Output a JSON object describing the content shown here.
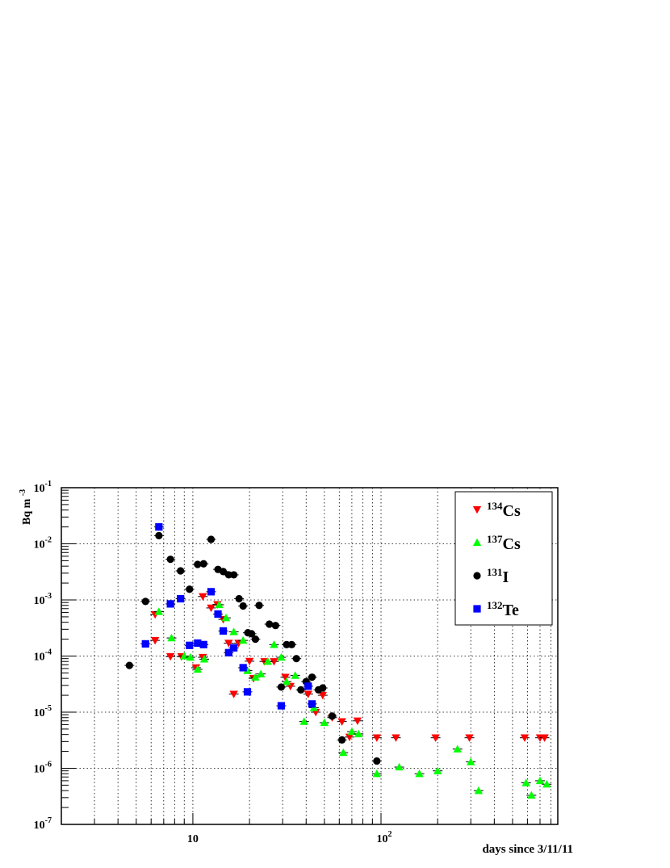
{
  "chart_data": {
    "type": "scatter",
    "title": "",
    "xlabel": "days since 3/11/11",
    "ylabel": "Bq m",
    "ylabel_exp": "-3",
    "x_scale": "log",
    "y_scale": "log",
    "xlim": [
      2,
      870
    ],
    "ylim": [
      1e-07,
      0.1
    ],
    "grid": true,
    "legend_position": "top-right",
    "x_ticks": [
      {
        "value": 10,
        "base": "10",
        "exp": ""
      },
      {
        "value": 100,
        "base": "10",
        "exp": "2"
      }
    ],
    "y_ticks": [
      {
        "value": 1e-07,
        "base": "10",
        "exp": "-7"
      },
      {
        "value": 1e-06,
        "base": "10",
        "exp": "-6"
      },
      {
        "value": 1e-05,
        "base": "10",
        "exp": "-5"
      },
      {
        "value": 0.0001,
        "base": "10",
        "exp": "-4"
      },
      {
        "value": 0.001,
        "base": "10",
        "exp": "-3"
      },
      {
        "value": 0.01,
        "base": "10",
        "exp": "-2"
      },
      {
        "value": 0.1,
        "base": "10",
        "exp": "-1"
      }
    ],
    "series": [
      {
        "name": "Cs",
        "sup": "134",
        "marker": "triangle-down",
        "color": "#ff0000",
        "points": [
          [
            6.3,
            0.00055
          ],
          [
            6.3,
            0.00019
          ],
          [
            7.6,
            9.8e-05
          ],
          [
            8.7,
            9.8e-05
          ],
          [
            10.4,
            6.2e-05
          ],
          [
            11.3,
            0.00115
          ],
          [
            11.3,
            9.5e-05
          ],
          [
            12.5,
            0.00072
          ],
          [
            13.5,
            0.00083
          ],
          [
            14.5,
            0.00045
          ],
          [
            15.5,
            0.00017
          ],
          [
            16.5,
            2.1e-05
          ],
          [
            17.5,
            0.00017
          ],
          [
            20.0,
            8.1e-05
          ],
          [
            21.0,
            4e-05
          ],
          [
            24.0,
            8e-05
          ],
          [
            27.0,
            8e-05
          ],
          [
            31.0,
            4.2e-05
          ],
          [
            33.0,
            2.9e-05
          ],
          [
            41.0,
            2.1e-05
          ],
          [
            45.0,
            1e-05
          ],
          [
            49.0,
            2e-05
          ],
          [
            55.0,
            8e-06
          ],
          [
            62.0,
            6.8e-06
          ],
          [
            68.0,
            3.6e-06
          ],
          [
            75.0,
            7e-06
          ],
          [
            95.0,
            3.5e-06
          ],
          [
            120.0,
            3.5e-06
          ],
          [
            195.0,
            3.5e-06
          ],
          [
            295.0,
            3.5e-06
          ],
          [
            580.0,
            3.5e-06
          ],
          [
            700.0,
            3.5e-06
          ],
          [
            740.0,
            3.5e-06
          ]
        ]
      },
      {
        "name": "Cs",
        "sup": "137",
        "marker": "triangle-up",
        "color": "#00ff00",
        "points": [
          [
            6.6,
            0.00062
          ],
          [
            7.7,
            0.00021
          ],
          [
            9.0,
            0.0001
          ],
          [
            9.7,
            9.5e-05
          ],
          [
            10.6,
            5.8e-05
          ],
          [
            11.5,
            8.8e-05
          ],
          [
            13.8,
            0.00082
          ],
          [
            15.0,
            0.00048
          ],
          [
            16.5,
            0.00027
          ],
          [
            18.5,
            0.00019
          ],
          [
            19.5,
            5.5e-05
          ],
          [
            21.5,
            4.2e-05
          ],
          [
            23.0,
            4.8e-05
          ],
          [
            25.0,
            8e-05
          ],
          [
            27.0,
            0.00016
          ],
          [
            29.5,
            9.5e-05
          ],
          [
            31.5,
            3.5e-05
          ],
          [
            35.0,
            4.5e-05
          ],
          [
            39.0,
            6.8e-06
          ],
          [
            44.0,
            1.2e-05
          ],
          [
            50.0,
            6.5e-06
          ],
          [
            63.0,
            1.9e-06
          ],
          [
            70.0,
            4.5e-06
          ],
          [
            76.0,
            4.1e-06
          ],
          [
            95.0,
            8e-07
          ],
          [
            125.0,
            1.05e-06
          ],
          [
            160.0,
            8e-07
          ],
          [
            200.0,
            9e-07
          ],
          [
            255.0,
            2.2e-06
          ],
          [
            300.0,
            1.3e-06
          ],
          [
            330.0,
            4e-07
          ],
          [
            590.0,
            5.5e-07
          ],
          [
            630.0,
            3.3e-07
          ],
          [
            700.0,
            6e-07
          ],
          [
            760.0,
            5.2e-07
          ]
        ]
      },
      {
        "name": "I",
        "sup": "131",
        "marker": "circle",
        "color": "#000000",
        "points": [
          [
            4.6,
            6.8e-05
          ],
          [
            5.6,
            0.00094
          ],
          [
            6.6,
            0.014
          ],
          [
            7.6,
            0.0053
          ],
          [
            8.6,
            0.0033
          ],
          [
            9.6,
            0.00155
          ],
          [
            10.6,
            0.0043
          ],
          [
            11.4,
            0.0044
          ],
          [
            12.5,
            0.012
          ],
          [
            13.6,
            0.0035
          ],
          [
            14.5,
            0.0032
          ],
          [
            15.5,
            0.0028
          ],
          [
            16.5,
            0.0028
          ],
          [
            17.6,
            0.00105
          ],
          [
            18.5,
            0.00078
          ],
          [
            19.6,
            0.00026
          ],
          [
            20.5,
            0.00025
          ],
          [
            21.5,
            0.0002
          ],
          [
            22.5,
            0.0008
          ],
          [
            25.5,
            0.00037
          ],
          [
            27.5,
            0.00035
          ],
          [
            29.5,
            2.8e-05
          ],
          [
            31.5,
            0.00016
          ],
          [
            33.5,
            0.00016
          ],
          [
            35.5,
            9e-05
          ],
          [
            37.5,
            2.5e-05
          ],
          [
            40.0,
            3.5e-05
          ],
          [
            43.0,
            4.2e-05
          ],
          [
            46.5,
            2.5e-05
          ],
          [
            49.0,
            2.7e-05
          ],
          [
            55.0,
            8.5e-06
          ],
          [
            62.0,
            3.2e-06
          ],
          [
            95.0,
            1.35e-06
          ]
        ]
      },
      {
        "name": "Te",
        "sup": "132",
        "marker": "square",
        "color": "#0000ff",
        "points": [
          [
            5.6,
            0.000165
          ],
          [
            6.6,
            0.02
          ],
          [
            7.6,
            0.00085
          ],
          [
            8.6,
            0.00105
          ],
          [
            9.6,
            0.000155
          ],
          [
            10.6,
            0.00017
          ],
          [
            11.4,
            0.00016
          ],
          [
            12.5,
            0.0014
          ],
          [
            13.6,
            0.00056
          ],
          [
            14.5,
            0.00028
          ],
          [
            15.5,
            0.000115
          ],
          [
            16.5,
            0.00014
          ],
          [
            18.5,
            6.2e-05
          ],
          [
            19.5,
            2.3e-05
          ],
          [
            29.5,
            1.3e-05
          ],
          [
            41.0,
            2.9e-05
          ],
          [
            43.0,
            1.4e-05
          ]
        ]
      }
    ]
  }
}
